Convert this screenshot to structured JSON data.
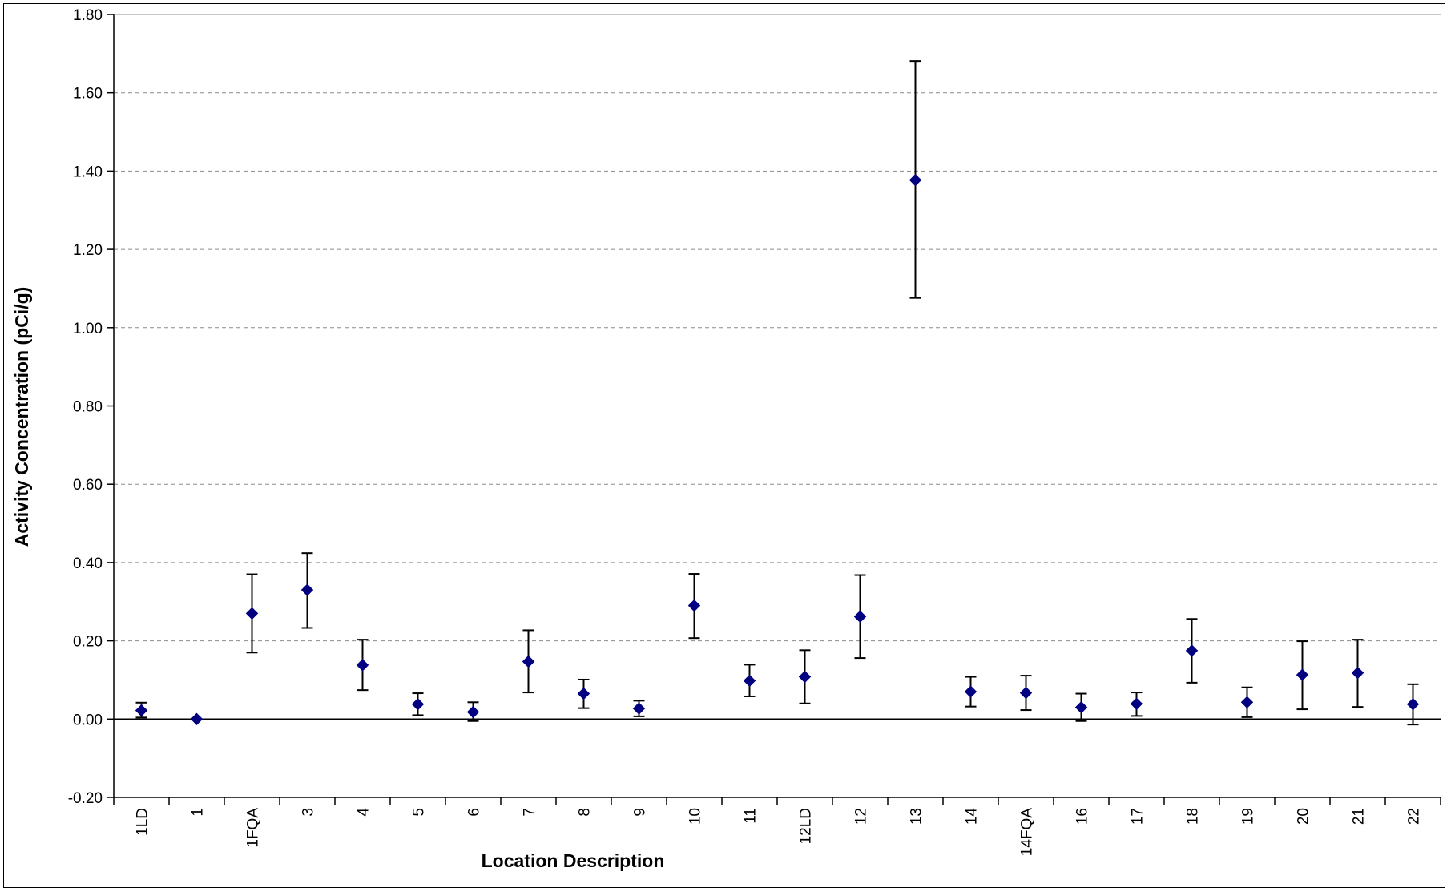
{
  "chart_data": {
    "type": "scatter",
    "title": "",
    "xlabel": "Location Description",
    "ylabel": "Activity Concentration (pCi/g)",
    "ylim": [
      -0.2,
      1.8
    ],
    "y_ticks": [
      "-0.20",
      "0.00",
      "0.20",
      "0.40",
      "0.60",
      "0.80",
      "1.00",
      "1.20",
      "1.40",
      "1.60",
      "1.80"
    ],
    "grid": "horizontal dashed",
    "legend": "none",
    "marker": "diamond",
    "marker_color": "#000080",
    "error_bar_color": "#000000",
    "categories": [
      "1LD",
      "1",
      "1FQA",
      "3",
      "4",
      "5",
      "6",
      "7",
      "8",
      "9",
      "10",
      "11",
      "12LD",
      "12",
      "13",
      "14",
      "14FQA",
      "16",
      "17",
      "18",
      "19",
      "20",
      "21",
      "22"
    ],
    "values": [
      0.022,
      0.0,
      0.27,
      0.33,
      0.138,
      0.038,
      0.018,
      0.147,
      0.065,
      0.027,
      0.29,
      0.098,
      0.108,
      0.262,
      1.377,
      0.07,
      0.067,
      0.03,
      0.039,
      0.175,
      0.043,
      0.113,
      0.118,
      0.038
    ],
    "error_low": [
      0.004,
      0.0,
      0.17,
      0.233,
      0.074,
      0.01,
      -0.005,
      0.068,
      0.028,
      0.007,
      0.207,
      0.058,
      0.04,
      0.156,
      1.076,
      0.032,
      0.023,
      -0.005,
      0.008,
      0.093,
      0.005,
      0.025,
      0.031,
      -0.014
    ],
    "error_high": [
      0.042,
      0.0,
      0.37,
      0.424,
      0.203,
      0.066,
      0.043,
      0.227,
      0.101,
      0.047,
      0.371,
      0.139,
      0.176,
      0.368,
      1.681,
      0.108,
      0.111,
      0.065,
      0.068,
      0.256,
      0.081,
      0.199,
      0.203,
      0.089
    ]
  }
}
